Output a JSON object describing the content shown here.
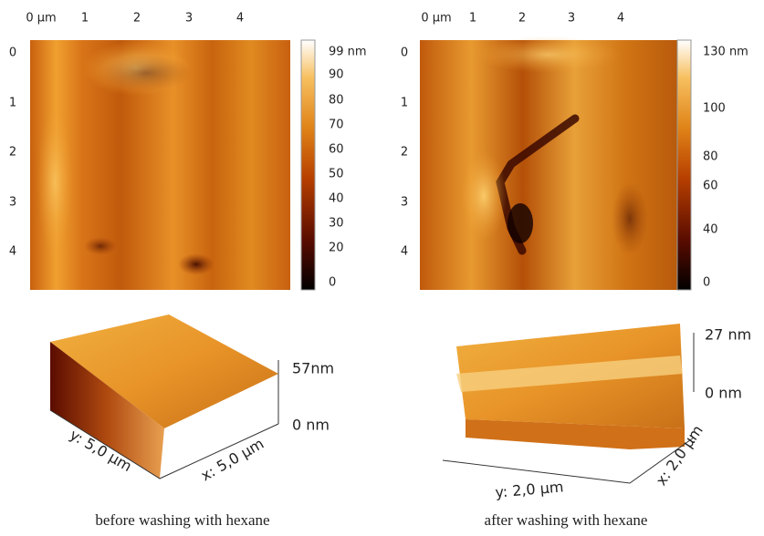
{
  "panels": [
    {
      "x_ticks": [
        "0 µm",
        "1",
        "2",
        "3",
        "4"
      ],
      "y_ticks": [
        "0",
        "1",
        "2",
        "3",
        "4"
      ],
      "colorbar_ticks": [
        "99 nm",
        "90",
        "80",
        "70",
        "60",
        "50",
        "40",
        "30",
        "20",
        "0"
      ],
      "surface": {
        "z_max": "57nm",
        "z_min": "0 nm",
        "y_axis": "y: 5,0 µm",
        "x_axis": "x: 5,0 µm"
      },
      "caption": "before washing with hexane"
    },
    {
      "x_ticks": [
        "0 µm",
        "1",
        "2",
        "3",
        "4"
      ],
      "y_ticks": [
        "0",
        "1",
        "2",
        "3",
        "4"
      ],
      "colorbar_ticks": [
        "130 nm",
        "100",
        "80",
        "60",
        "40",
        "0"
      ],
      "surface": {
        "z_max": "27 nm",
        "z_min": "0 nm",
        "y_axis": "y: 2,0 µm",
        "x_axis": "x: 2,0 µm"
      },
      "caption": "after washing with hexane"
    }
  ]
}
